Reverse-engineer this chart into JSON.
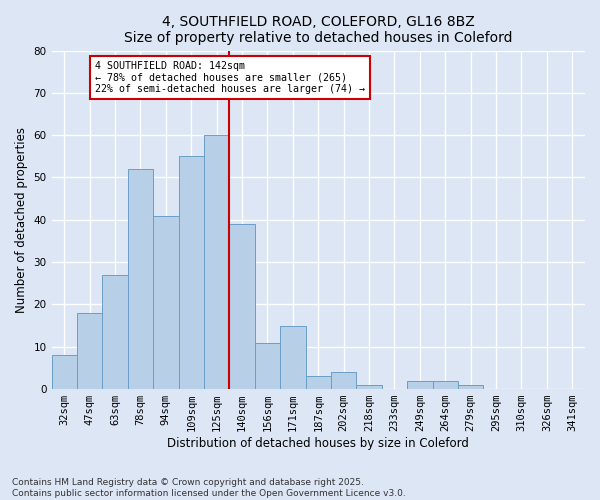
{
  "title1": "4, SOUTHFIELD ROAD, COLEFORD, GL16 8BZ",
  "title2": "Size of property relative to detached houses in Coleford",
  "xlabel": "Distribution of detached houses by size in Coleford",
  "ylabel": "Number of detached properties",
  "categories": [
    "32sqm",
    "47sqm",
    "63sqm",
    "78sqm",
    "94sqm",
    "109sqm",
    "125sqm",
    "140sqm",
    "156sqm",
    "171sqm",
    "187sqm",
    "202sqm",
    "218sqm",
    "233sqm",
    "249sqm",
    "264sqm",
    "279sqm",
    "295sqm",
    "310sqm",
    "326sqm",
    "341sqm"
  ],
  "values": [
    8,
    18,
    27,
    52,
    41,
    55,
    60,
    39,
    11,
    15,
    3,
    4,
    1,
    0,
    2,
    2,
    1,
    0,
    0,
    0,
    0
  ],
  "bar_color": "#b8cfe8",
  "bar_edgecolor": "#6a9fc8",
  "vline_index": 7,
  "vline_color": "#cc0000",
  "annotation_text": "4 SOUTHFIELD ROAD: 142sqm\n← 78% of detached houses are smaller (265)\n22% of semi-detached houses are larger (74) →",
  "annotation_box_edgecolor": "#cc0000",
  "annotation_box_facecolor": "#ffffff",
  "ylim": [
    0,
    80
  ],
  "yticks": [
    0,
    10,
    20,
    30,
    40,
    50,
    60,
    70,
    80
  ],
  "footer_text": "Contains HM Land Registry data © Crown copyright and database right 2025.\nContains public sector information licensed under the Open Government Licence v3.0.",
  "bg_color": "#dce6f5",
  "plot_bg_color": "#dce6f5",
  "grid_color": "#ffffff",
  "title_fontsize": 10,
  "axis_label_fontsize": 8.5,
  "tick_fontsize": 7.5,
  "footer_fontsize": 6.5
}
